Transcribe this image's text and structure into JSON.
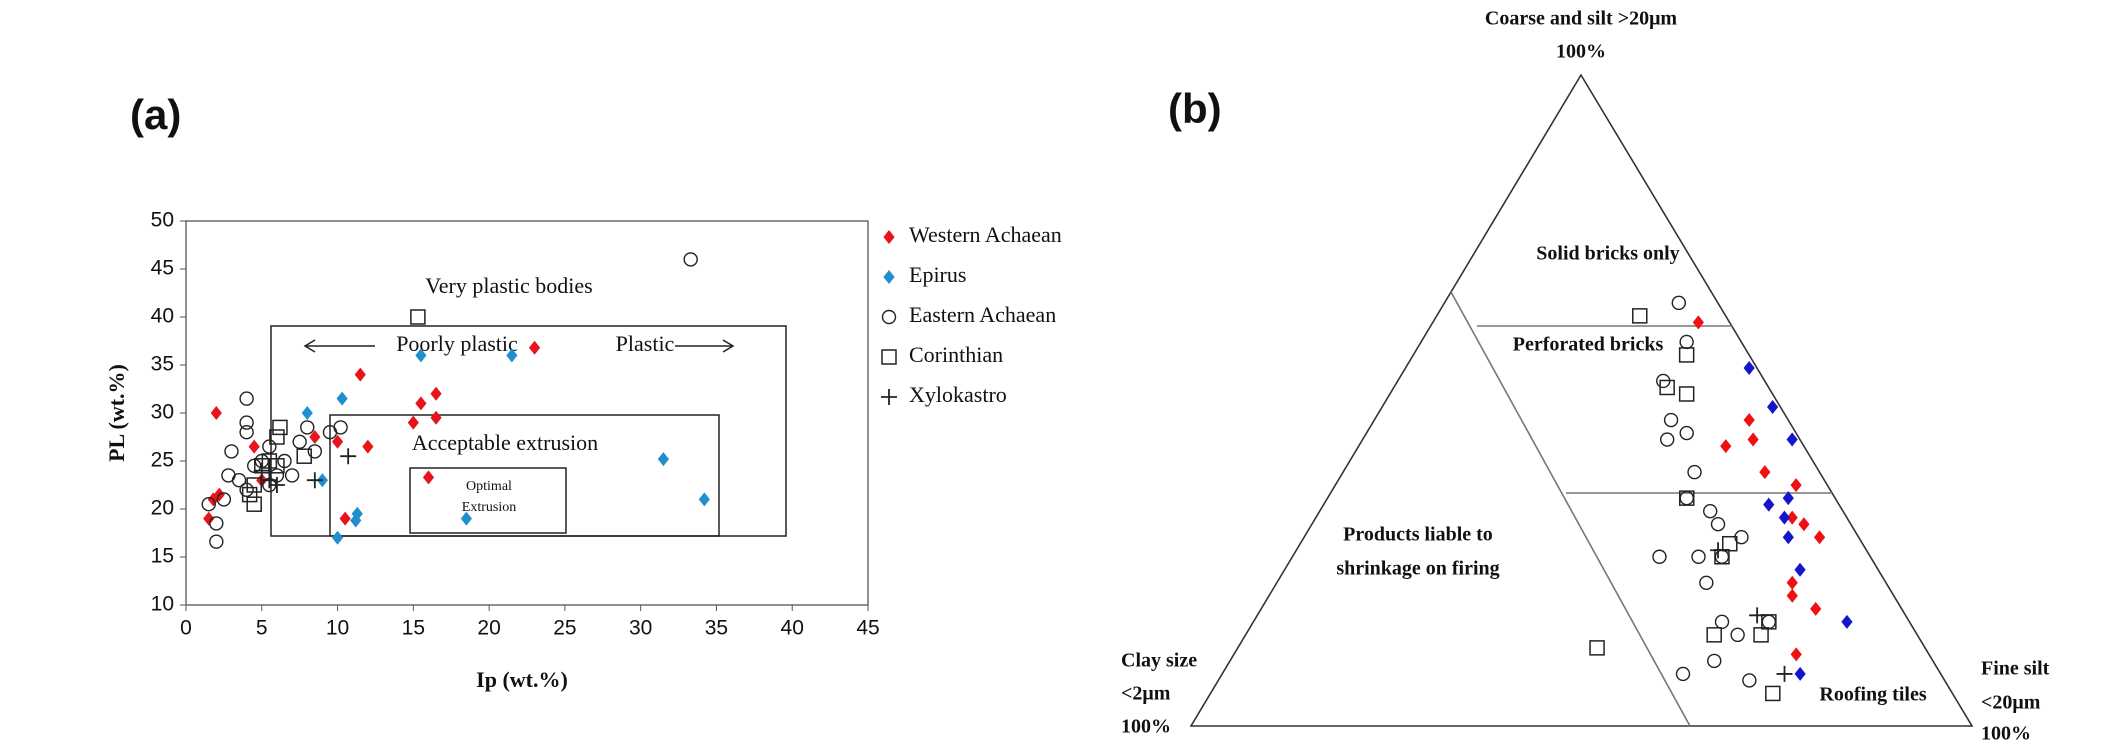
{
  "chart_data": [
    {
      "type": "scatter",
      "title": "(a)",
      "x_label": "Ip (wt.%)",
      "y_label": "PL (wt.%)",
      "xlim": [
        0,
        45
      ],
      "ylim": [
        10,
        50
      ],
      "xticks": [
        0,
        5,
        10,
        15,
        20,
        25,
        30,
        35,
        40,
        45
      ],
      "yticks": [
        10,
        15,
        20,
        25,
        30,
        35,
        40,
        45,
        50
      ],
      "annotations": [
        "Very plastic bodies",
        "Poorly plastic",
        "Plastic",
        "Acceptable extrusion",
        "Optimal",
        "Extrusion"
      ],
      "series": [
        {
          "name": "Western Achaean",
          "color": "#e8141c",
          "marker": "diamond",
          "x": [
            2,
            1.5,
            1.8,
            2.2,
            4.5,
            5,
            8.5,
            10,
            10.5,
            11.5,
            12,
            15,
            15.5,
            16.5,
            16.5,
            16,
            23
          ],
          "y": [
            30,
            19,
            21,
            21.5,
            26.5,
            23,
            27.5,
            27,
            19,
            34,
            26.5,
            29,
            31,
            29.5,
            32,
            23.3,
            36.8
          ]
        },
        {
          "name": "Epirus",
          "color": "#1f8fcf",
          "marker": "diamond",
          "x": [
            8,
            9,
            10,
            10.3,
            11.3,
            11.2,
            15.5,
            21.5,
            18.5,
            31.5,
            34.2
          ],
          "y": [
            30,
            23,
            17,
            31.5,
            19.5,
            18.8,
            36,
            36,
            19,
            25.2,
            21
          ]
        },
        {
          "name": "Eastern Achaean",
          "color": "#222222",
          "marker": "circle",
          "x": [
            33.3,
            2,
            2,
            1.5,
            2.5,
            3,
            2.8,
            4,
            4,
            4,
            3.5,
            4,
            4.5,
            5,
            5.5,
            6,
            6.5,
            7,
            7.5,
            8,
            8.5,
            9.5,
            10.2,
            5.5
          ],
          "y": [
            46,
            16.6,
            18.5,
            20.5,
            21,
            26,
            23.5,
            31.5,
            29,
            28,
            23,
            22,
            24.5,
            25,
            26.5,
            23.5,
            25,
            23.5,
            27,
            28.5,
            26,
            28,
            28.5,
            22.5
          ]
        },
        {
          "name": "Corinthian",
          "color": "#222222",
          "marker": "square",
          "x": [
            15.3,
            4.5,
            4.5,
            5,
            5.5,
            6,
            6.2,
            6,
            7.8,
            4.2
          ],
          "y": [
            40,
            20.5,
            22.5,
            24.5,
            25,
            27.5,
            28.5,
            24.5,
            25.5,
            21.5
          ]
        },
        {
          "name": "Xylokastro",
          "color": "#222222",
          "marker": "plus",
          "x": [
            10.7,
            8.5,
            6,
            5.5,
            5
          ],
          "y": [
            25.5,
            23,
            22.5,
            23,
            24
          ]
        }
      ]
    },
    {
      "type": "ternary",
      "title": "(b)",
      "top_label": [
        "Coarse and silt >20μm",
        "100%"
      ],
      "left_label": [
        "Clay size",
        "<2μm",
        "100%"
      ],
      "right_label": [
        "Fine silt",
        "<20μm",
        "100%"
      ],
      "regions": [
        "Solid bricks only",
        "Perforated bricks",
        "Products liable to",
        "shrinkage on firing",
        "Roofing tiles"
      ],
      "series": [
        {
          "color": "#ee1111",
          "marker": "diamond",
          "coarse": [
            62,
            47,
            43,
            44,
            39,
            37,
            32,
            31,
            29,
            22,
            18,
            11,
            20
          ],
          "fine_silt": [
            34,
            48,
            47,
            50,
            54,
            59,
            61,
            63,
            66,
            66,
            71,
            72,
            67
          ],
          "clay": [
            4,
            5,
            10,
            6,
            7,
            4,
            7,
            6,
            5,
            12,
            11,
            17,
            13
          ]
        },
        {
          "color": "#1515cc",
          "marker": "diamond",
          "coarse": [
            55,
            49,
            44,
            35,
            32,
            34,
            24,
            16,
            8,
            29
          ],
          "fine_silt": [
            44,
            50,
            55,
            59,
            60,
            57,
            66,
            76,
            74,
            62
          ],
          "clay": [
            1,
            1,
            1,
            6,
            8,
            9,
            10,
            8,
            18,
            9
          ]
        },
        {
          "color": "#222222",
          "marker": "circle",
          "coarse": [
            65,
            59,
            53,
            47,
            45,
            44,
            39,
            35,
            33,
            31,
            29,
            26,
            22,
            26,
            14,
            8,
            7,
            10,
            16,
            16,
            26
          ],
          "fine_silt": [
            30,
            34,
            34,
            38,
            41,
            39,
            45,
            46,
            50,
            52,
            56,
            52,
            55,
            47,
            63,
            59,
            68,
            62,
            66,
            60,
            55
          ],
          "clay": [
            5,
            7,
            13,
            15,
            14,
            17,
            16,
            19,
            17,
            17,
            15,
            22,
            23,
            27,
            23,
            33,
            25,
            28,
            18,
            24,
            19
          ]
        },
        {
          "color": "#222222",
          "marker": "square",
          "coarse": [
            63,
            57,
            52,
            51,
            35,
            28,
            26,
            16,
            14,
            14,
            5,
            12
          ],
          "fine_silt": [
            26,
            35,
            35,
            38,
            46,
            55,
            55,
            66,
            60,
            66,
            72,
            46
          ],
          "clay": [
            11,
            8,
            13,
            11,
            19,
            17,
            19,
            18,
            26,
            20,
            23,
            42
          ]
        },
        {
          "color": "#222222",
          "marker": "plus",
          "coarse": [
            17,
            8,
            27
          ],
          "fine_silt": [
            64,
            72,
            54
          ],
          "clay": [
            19,
            20,
            19
          ]
        }
      ]
    }
  ]
}
